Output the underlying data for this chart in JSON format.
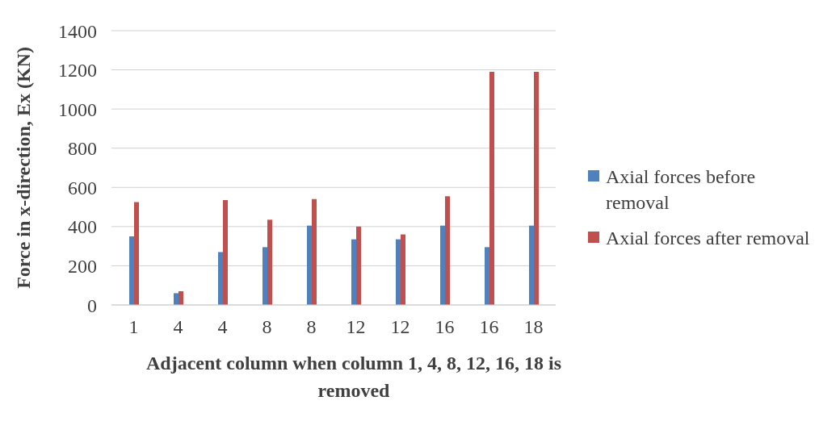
{
  "chart_data": {
    "type": "bar",
    "xlabel": "Adjacent column when column 1, 4, 8, 12, 16, 18 is removed",
    "ylabel": "Force in x-direction, Ex (KN)",
    "categories": [
      "1",
      "4",
      "4",
      "8",
      "8",
      "12",
      "12",
      "16",
      "16",
      "18"
    ],
    "series": [
      {
        "name": "Axial forces before removal",
        "color": "#4f81bd",
        "values": [
          350,
          60,
          270,
          295,
          405,
          335,
          335,
          405,
          295,
          405
        ]
      },
      {
        "name": "Axial forces after removal",
        "color": "#c0504d",
        "values": [
          525,
          70,
          535,
          435,
          540,
          400,
          360,
          555,
          1190,
          1190
        ]
      }
    ],
    "ylim": [
      0,
      1400
    ],
    "yticks": [
      0,
      200,
      400,
      600,
      800,
      1000,
      1200,
      1400
    ],
    "grid": "y",
    "legend": "right"
  }
}
